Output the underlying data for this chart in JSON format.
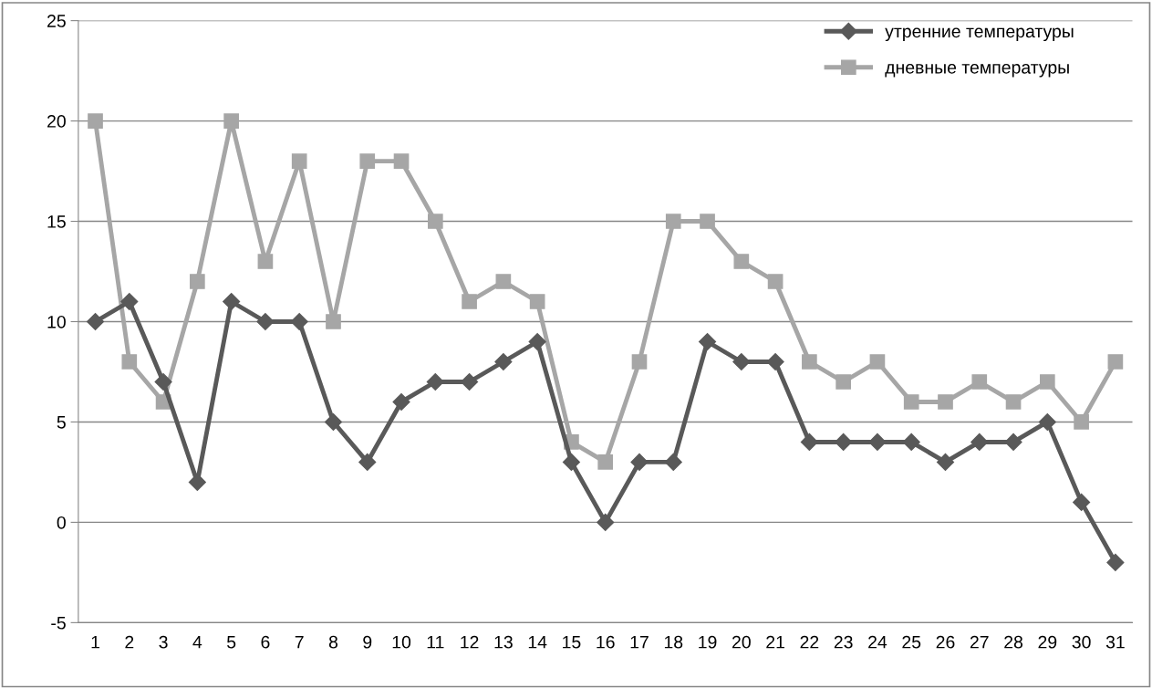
{
  "chart_data": {
    "type": "line",
    "categories": [
      "1",
      "2",
      "3",
      "4",
      "5",
      "6",
      "7",
      "8",
      "9",
      "10",
      "11",
      "12",
      "13",
      "14",
      "15",
      "16",
      "17",
      "18",
      "19",
      "20",
      "21",
      "22",
      "23",
      "24",
      "25",
      "26",
      "27",
      "28",
      "29",
      "30",
      "31"
    ],
    "series": [
      {
        "name": "утренние температуры",
        "color": "#595959",
        "marker": "diamond",
        "values": [
          10,
          11,
          7,
          2,
          11,
          10,
          10,
          5,
          3,
          6,
          7,
          7,
          8,
          9,
          3,
          0,
          3,
          3,
          9,
          8,
          8,
          4,
          4,
          4,
          4,
          3,
          4,
          4,
          5,
          1,
          -2
        ]
      },
      {
        "name": "дневные температуры",
        "color": "#a6a6a6",
        "marker": "square",
        "values": [
          20,
          8,
          6,
          12,
          20,
          13,
          18,
          10,
          18,
          18,
          15,
          11,
          12,
          11,
          4,
          3,
          8,
          15,
          15,
          13,
          12,
          8,
          7,
          8,
          6,
          6,
          7,
          6,
          7,
          5,
          8
        ]
      }
    ],
    "ylim": [
      -5,
      25
    ],
    "yticks": [
      -5,
      0,
      5,
      10,
      15,
      20,
      25
    ],
    "grid": "y",
    "legend": "top right",
    "line_style": "solid"
  }
}
